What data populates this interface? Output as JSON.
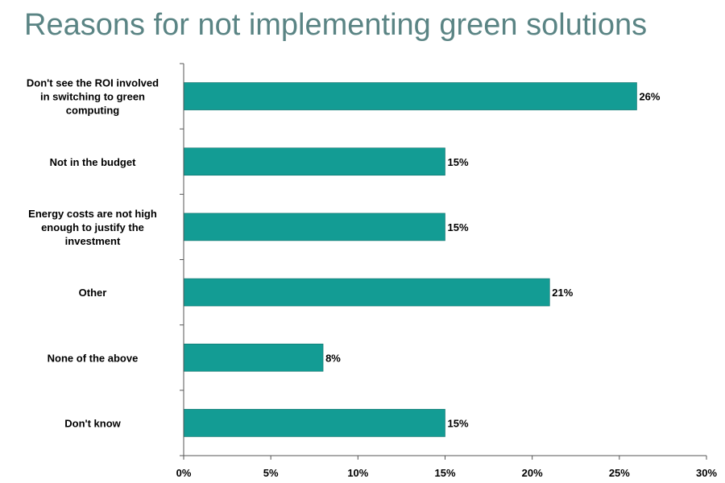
{
  "chart_data": {
    "type": "bar",
    "orientation": "horizontal",
    "title": "Reasons for not implementing green solutions",
    "categories": [
      "Don't see the ROI involved in switching to green computing",
      "Not in the budget",
      "Energy costs are not high enough to justify the investment",
      "Other",
      "None of the above",
      "Don't know"
    ],
    "category_lines": [
      [
        "Don't see the ROI involved",
        "in switching to green",
        "computing"
      ],
      [
        "Not in the budget"
      ],
      [
        "Energy costs are not high",
        "enough to justify the",
        "investment"
      ],
      [
        "Other"
      ],
      [
        "None of the above"
      ],
      [
        "Don't know"
      ]
    ],
    "values": [
      26,
      15,
      15,
      21,
      8,
      15
    ],
    "value_labels": [
      "26%",
      "15%",
      "15%",
      "21%",
      "8%",
      "15%"
    ],
    "xlim": [
      0,
      30
    ],
    "xticks": [
      0,
      5,
      10,
      15,
      20,
      25,
      30
    ],
    "xtick_labels": [
      "0%",
      "5%",
      "10%",
      "15%",
      "20%",
      "25%",
      "30%"
    ],
    "bar_color": "#139c94",
    "title_color": "#5a8484",
    "grid": false,
    "legend": "none"
  }
}
